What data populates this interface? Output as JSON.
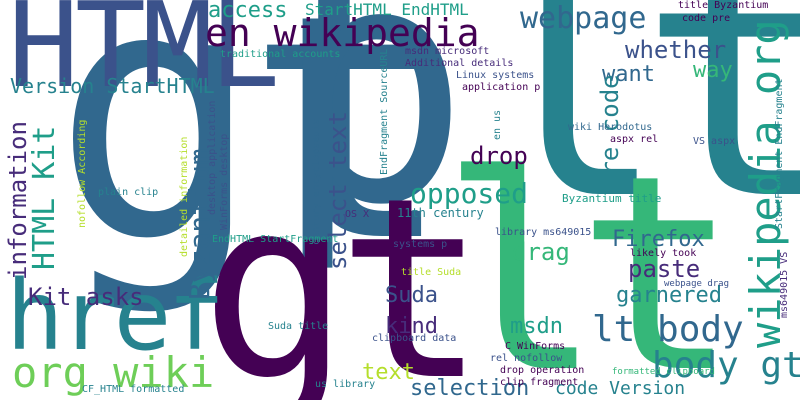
{
  "palette": {
    "purple": "#440154",
    "indigo": "#472c7a",
    "blue": "#3b528b",
    "steel": "#31688e",
    "teal": "#26828e",
    "green": "#1f9e89",
    "mint": "#35b779",
    "lime": "#6ece58",
    "yellow": "#b5de2b"
  },
  "words": {
    "gt": "gt",
    "p": "p",
    "lt": "lt",
    "gt_lower": "gt",
    "lt_lower": "lt",
    "html": "HTML",
    "href": "href",
    "en_wikipedia": "en wikipedia",
    "wikipedia_org": "wikipedia org",
    "org_wiki": "org wiki",
    "lt_body": "lt body",
    "body_gt": "body gt",
    "webpage": "webpage",
    "access": "access",
    "starthtml_endhtml": "StartHTML EndHTML",
    "whether": "whether",
    "want": "want",
    "way": "way",
    "version_starthtml": "Version StartHTML",
    "html_kit": "HTML Kit",
    "information": "information",
    "kit_asks": "Kit asks",
    "select_text": "select text",
    "drop": "drop",
    "opposed": "opposed",
    "pre_code": "pre code",
    "byzantium": "Byzantium",
    "drag": "drag",
    "firefox": "Firefox",
    "paste": "paste",
    "suda": "Suda",
    "kind": "kind",
    "msdn": "msdn",
    "garnered": "garnered",
    "text": "text",
    "selection": "selection",
    "code_version": "code Version",
    "title_byzantium": "title Byzantium",
    "code_pre": "code pre",
    "msdn_microsoft": "msdn microsoft",
    "traditional_accounts": "traditional accounts",
    "endfragment_sourceurl": "EndFragment SourceURL",
    "additional_details": "Additional details",
    "linux_systems": "Linux systems",
    "application_p": "application p",
    "en_us": "en us",
    "wiki_herodotus": "wiki Herodotus",
    "aspx_rel": "aspx rel",
    "vs_aspx": "VS aspx",
    "startfragment_endfragment": "StartFragment EndFragment",
    "century_encyclopaedia": "century encyclopaedia",
    "desktop_application": "desktop application",
    "winforms_desktop": "WinForms desktop",
    "nofollow_according": "nofollow According",
    "plain_clip": "plain clip",
    "detailed_information": "detailed information",
    "os_x": "OS X",
    "eleventh_century": "11th century",
    "byzantium_title": "Byzantium title",
    "endhtml_startfragment": "EndHTML StartFragment",
    "systems_p": "systems p",
    "library_ms649015": "library ms649015",
    "likely_took": "likely took",
    "ms649015_vs": "ms649015 VS",
    "title_suda": "title Suda",
    "webpage_drag": "webpage drag",
    "suda_title": "Suda title",
    "clipboard_data": "clipboard data",
    "c_winforms": "C WinForms",
    "rel_nofollow": "rel nofollow",
    "drop_operation": "drop operation",
    "clip_fragment": "clip fragment",
    "formatted_clipboard": "formatted clipboard",
    "cf_html_formatted": "CF_HTML formatted",
    "us_library": "us library"
  }
}
